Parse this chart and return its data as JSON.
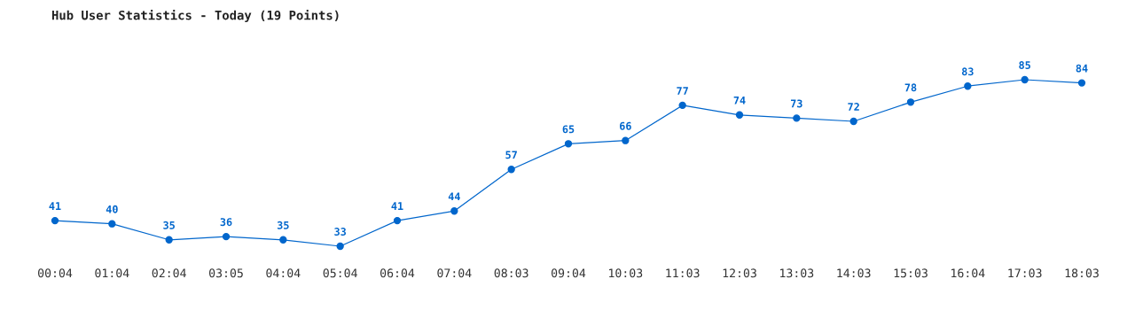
{
  "chart_data": {
    "type": "line",
    "title": "Hub User Statistics - Today (19 Points)",
    "categories": [
      "00:04",
      "01:04",
      "02:04",
      "03:05",
      "04:04",
      "05:04",
      "06:04",
      "07:04",
      "08:03",
      "09:04",
      "10:03",
      "11:03",
      "12:03",
      "13:03",
      "14:03",
      "15:03",
      "16:04",
      "17:03",
      "18:03"
    ],
    "series": [
      {
        "color": "#0066cc",
        "values": [
          41,
          40,
          35,
          36,
          35,
          33,
          41,
          44,
          57,
          65,
          66,
          77,
          74,
          73,
          72,
          78,
          83,
          85,
          84
        ]
      }
    ],
    "data_labels": true,
    "marker": "circle",
    "line_style": "solid",
    "grid": false,
    "legend": false,
    "tick_labels": "x"
  }
}
